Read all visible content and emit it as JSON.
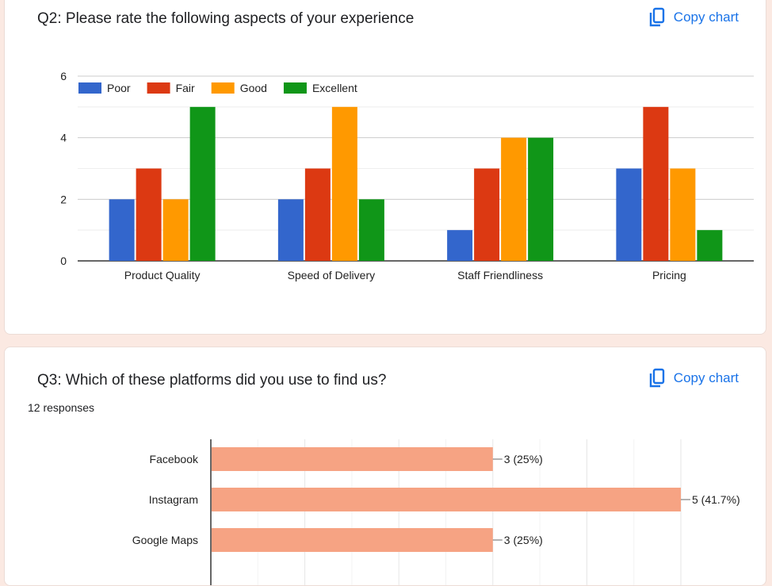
{
  "q2": {
    "title": "Q2: Please rate the following aspects of your experience",
    "copy_label": "Copy chart"
  },
  "q3": {
    "title": "Q3: Which of these platforms did you use to find us?",
    "copy_label": "Copy chart",
    "responses": "12 responses"
  },
  "chart_data": [
    {
      "type": "bar",
      "categories": [
        "Product Quality",
        "Speed of Delivery",
        "Staff Friendliness",
        "Pricing"
      ],
      "series": [
        {
          "name": "Poor",
          "color": "#3366cc",
          "values": [
            2,
            2,
            1,
            3
          ]
        },
        {
          "name": "Fair",
          "color": "#dc3912",
          "values": [
            3,
            3,
            3,
            5
          ]
        },
        {
          "name": "Good",
          "color": "#ff9900",
          "values": [
            2,
            5,
            4,
            3
          ]
        },
        {
          "name": "Excellent",
          "color": "#109618",
          "values": [
            5,
            2,
            4,
            1
          ]
        }
      ],
      "ylim": [
        0,
        6
      ],
      "yticks": [
        "0",
        "2",
        "4",
        "6"
      ],
      "legend": "top",
      "grid": true
    },
    {
      "type": "bar",
      "orientation": "horizontal",
      "categories": [
        "Facebook",
        "Instagram",
        "Google Maps"
      ],
      "values": [
        3,
        5,
        3
      ],
      "labels": [
        "3 (25%)",
        "5 (41.7%)",
        "3 (25%)"
      ],
      "color": "#f6a383",
      "xlim": [
        0,
        5
      ],
      "grid": true
    }
  ]
}
